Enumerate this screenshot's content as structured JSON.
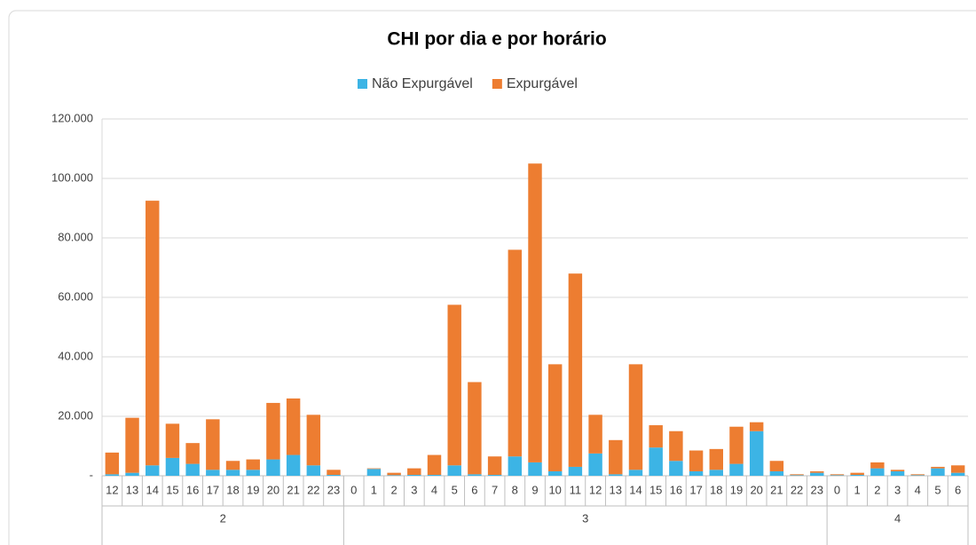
{
  "chart_data": {
    "type": "stacked_bar",
    "title": "CHI por dia e por horário",
    "groups": [
      {
        "name": "2",
        "categories": [
          "12",
          "13",
          "14",
          "15",
          "16",
          "17",
          "18",
          "19",
          "20",
          "21",
          "22",
          "23"
        ]
      },
      {
        "name": "3",
        "categories": [
          "0",
          "1",
          "2",
          "3",
          "4",
          "5",
          "6",
          "7",
          "8",
          "9",
          "10",
          "11",
          "12",
          "13",
          "14",
          "15",
          "16",
          "17",
          "18",
          "19",
          "20",
          "21",
          "22",
          "23"
        ]
      },
      {
        "name": "4",
        "categories": [
          "0",
          "1",
          "2",
          "3",
          "4",
          "5",
          "6"
        ]
      }
    ],
    "series": [
      {
        "name": "Não Expurgável",
        "color": "#3cb4e5",
        "values": [
          500,
          1000,
          3500,
          6000,
          4000,
          2000,
          2000,
          2000,
          5500,
          7000,
          3500,
          300,
          0,
          2300,
          200,
          300,
          300,
          3500,
          500,
          300,
          6500,
          4500,
          1500,
          3000,
          7500,
          500,
          2000,
          9500,
          5000,
          1500,
          2000,
          4000,
          15000,
          1500,
          200,
          1000,
          200,
          300,
          2500,
          1500,
          200,
          2500,
          1000
        ]
      },
      {
        "name": "Expurgável",
        "color": "#ed7d31",
        "values": [
          7300,
          18500,
          89000,
          11500,
          7000,
          17000,
          3000,
          3500,
          19000,
          19000,
          17000,
          1700,
          0,
          200,
          800,
          2200,
          6700,
          54000,
          31000,
          6200,
          69500,
          100500,
          36000,
          65000,
          13000,
          11500,
          35500,
          7500,
          10000,
          7000,
          7000,
          12500,
          3000,
          3500,
          300,
          500,
          300,
          700,
          2000,
          500,
          300,
          500,
          2500
        ]
      }
    ],
    "ylim": [
      0,
      120000
    ],
    "yticks": [
      {
        "value": 0,
        "label": "-"
      },
      {
        "value": 20000,
        "label": "20.000"
      },
      {
        "value": 40000,
        "label": "40.000"
      },
      {
        "value": 60000,
        "label": "60.000"
      },
      {
        "value": 80000,
        "label": "80.000"
      },
      {
        "value": 100000,
        "label": "100.000"
      },
      {
        "value": 120000,
        "label": "120.000"
      }
    ],
    "grid": true
  }
}
